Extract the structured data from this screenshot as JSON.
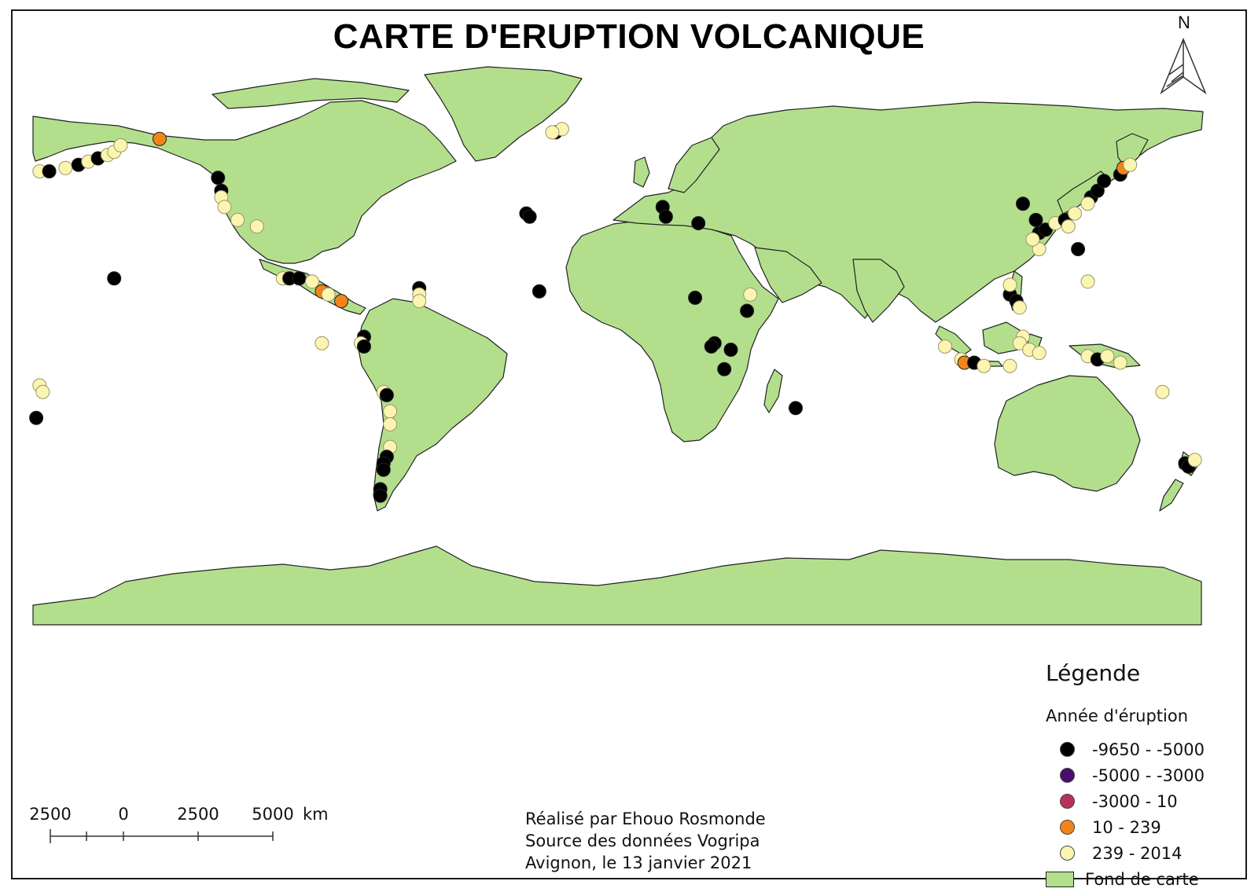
{
  "title": "CARTE D'ERUPTION VOLCANIQUE",
  "north_label": "N",
  "legend": {
    "title": "Légende",
    "subtitle": "Année d'éruption",
    "classes": [
      {
        "label": "-9650 - -5000",
        "color": "#000000"
      },
      {
        "label": "-5000 - -3000",
        "color": "#4a0d6e"
      },
      {
        "label": "-3000 - 10",
        "color": "#b8325a"
      },
      {
        "label": "10 - 239",
        "color": "#f2841a"
      },
      {
        "label": "239 - 2014",
        "color": "#fbf5b0"
      }
    ],
    "basemap": {
      "label": "Fond de carte",
      "color": "#b3df8d"
    }
  },
  "credits": {
    "author": "Réalisé par Ehouo Rosmonde",
    "source": "Source des données Vogripa",
    "place_date": "Avignon, le 13 janvier 2021"
  },
  "scale_bar": {
    "ticks": [
      "2500",
      "0",
      "2500",
      "5000"
    ],
    "unit": "km"
  },
  "map_data": {
    "projection": "equirectangular",
    "land_color": "#b3df8d",
    "eruptions": [
      {
        "lon": -178,
        "lat": 52,
        "c": 4
      },
      {
        "lon": -175,
        "lat": 52,
        "c": 0
      },
      {
        "lon": -170,
        "lat": 53,
        "c": 4
      },
      {
        "lon": -166,
        "lat": 54,
        "c": 0
      },
      {
        "lon": -163,
        "lat": 55,
        "c": 4
      },
      {
        "lon": -160,
        "lat": 56,
        "c": 0
      },
      {
        "lon": -157,
        "lat": 57,
        "c": 4
      },
      {
        "lon": -155,
        "lat": 58,
        "c": 4
      },
      {
        "lon": -153,
        "lat": 60,
        "c": 4
      },
      {
        "lon": -141,
        "lat": 62,
        "c": 3
      },
      {
        "lon": -123,
        "lat": 50,
        "c": 0
      },
      {
        "lon": -122,
        "lat": 46,
        "c": 0
      },
      {
        "lon": -122,
        "lat": 44,
        "c": 4
      },
      {
        "lon": -121,
        "lat": 41,
        "c": 4
      },
      {
        "lon": -117,
        "lat": 37,
        "c": 4
      },
      {
        "lon": -111,
        "lat": 35,
        "c": 4
      },
      {
        "lon": -155,
        "lat": 19,
        "c": 0
      },
      {
        "lon": -103,
        "lat": 19,
        "c": 4
      },
      {
        "lon": -101,
        "lat": 19,
        "c": 0
      },
      {
        "lon": -98,
        "lat": 19,
        "c": 0
      },
      {
        "lon": -94,
        "lat": 18,
        "c": 4
      },
      {
        "lon": -91,
        "lat": 15,
        "c": 3
      },
      {
        "lon": -89,
        "lat": 14,
        "c": 4
      },
      {
        "lon": -85,
        "lat": 12,
        "c": 3
      },
      {
        "lon": -61,
        "lat": 16,
        "c": 0
      },
      {
        "lon": -61,
        "lat": 14,
        "c": 4
      },
      {
        "lon": -61,
        "lat": 12,
        "c": 4
      },
      {
        "lon": -78,
        "lat": 1,
        "c": 0
      },
      {
        "lon": -79,
        "lat": -1,
        "c": 4
      },
      {
        "lon": -78,
        "lat": -2,
        "c": 0
      },
      {
        "lon": -91,
        "lat": -1,
        "c": 4
      },
      {
        "lon": -72,
        "lat": -16,
        "c": 4
      },
      {
        "lon": -71,
        "lat": -17,
        "c": 0
      },
      {
        "lon": -70,
        "lat": -22,
        "c": 4
      },
      {
        "lon": -70,
        "lat": -26,
        "c": 4
      },
      {
        "lon": -70,
        "lat": -33,
        "c": 4
      },
      {
        "lon": -71,
        "lat": -36,
        "c": 0
      },
      {
        "lon": -72,
        "lat": -38,
        "c": 0
      },
      {
        "lon": -72,
        "lat": -40,
        "c": 0
      },
      {
        "lon": -73,
        "lat": -46,
        "c": 0
      },
      {
        "lon": -73,
        "lat": -48,
        "c": 0
      },
      {
        "lon": -19,
        "lat": 64,
        "c": 0
      },
      {
        "lon": -17,
        "lat": 65,
        "c": 4
      },
      {
        "lon": -20,
        "lat": 64,
        "c": 4
      },
      {
        "lon": -28,
        "lat": 39,
        "c": 0
      },
      {
        "lon": -27,
        "lat": 38,
        "c": 0
      },
      {
        "lon": -24,
        "lat": 15,
        "c": 0
      },
      {
        "lon": 14,
        "lat": 41,
        "c": 0
      },
      {
        "lon": 15,
        "lat": 38,
        "c": 0
      },
      {
        "lon": 25,
        "lat": 36,
        "c": 0
      },
      {
        "lon": 24,
        "lat": 13,
        "c": 0
      },
      {
        "lon": 40,
        "lat": 9,
        "c": 0
      },
      {
        "lon": 41,
        "lat": 14,
        "c": 4
      },
      {
        "lon": 30,
        "lat": -1,
        "c": 0
      },
      {
        "lon": 29,
        "lat": -2,
        "c": 0
      },
      {
        "lon": 35,
        "lat": -3,
        "c": 0
      },
      {
        "lon": 33,
        "lat": -9,
        "c": 0
      },
      {
        "lon": 55,
        "lat": -21,
        "c": 0
      },
      {
        "lon": 125,
        "lat": 42,
        "c": 0
      },
      {
        "lon": 129,
        "lat": 37,
        "c": 0
      },
      {
        "lon": 130,
        "lat": 33,
        "c": 0
      },
      {
        "lon": 132,
        "lat": 34,
        "c": 0
      },
      {
        "lon": 135,
        "lat": 36,
        "c": 4
      },
      {
        "lon": 138,
        "lat": 37,
        "c": 0
      },
      {
        "lon": 139,
        "lat": 35,
        "c": 4
      },
      {
        "lon": 141,
        "lat": 39,
        "c": 4
      },
      {
        "lon": 146,
        "lat": 44,
        "c": 0
      },
      {
        "lon": 148,
        "lat": 46,
        "c": 0
      },
      {
        "lon": 150,
        "lat": 49,
        "c": 0
      },
      {
        "lon": 155,
        "lat": 51,
        "c": 0
      },
      {
        "lon": 156,
        "lat": 53,
        "c": 3
      },
      {
        "lon": 158,
        "lat": 54,
        "c": 4
      },
      {
        "lon": 145,
        "lat": 42,
        "c": 4
      },
      {
        "lon": 142,
        "lat": 28,
        "c": 0
      },
      {
        "lon": 130,
        "lat": 28,
        "c": 4
      },
      {
        "lon": 128,
        "lat": 31,
        "c": 4
      },
      {
        "lon": 145,
        "lat": 18,
        "c": 4
      },
      {
        "lon": 121,
        "lat": 14,
        "c": 0
      },
      {
        "lon": 123,
        "lat": 12,
        "c": 0
      },
      {
        "lon": 121,
        "lat": 17,
        "c": 4
      },
      {
        "lon": 124,
        "lat": 10,
        "c": 4
      },
      {
        "lon": 125,
        "lat": 1,
        "c": 4
      },
      {
        "lon": 124,
        "lat": -1,
        "c": 4
      },
      {
        "lon": 101,
        "lat": -2,
        "c": 4
      },
      {
        "lon": 106,
        "lat": -6,
        "c": 4
      },
      {
        "lon": 107,
        "lat": -7,
        "c": 3
      },
      {
        "lon": 110,
        "lat": -7,
        "c": 0
      },
      {
        "lon": 113,
        "lat": -8,
        "c": 4
      },
      {
        "lon": 121,
        "lat": -8,
        "c": 4
      },
      {
        "lon": 127,
        "lat": -3,
        "c": 4
      },
      {
        "lon": 130,
        "lat": -4,
        "c": 4
      },
      {
        "lon": 145,
        "lat": -5,
        "c": 4
      },
      {
        "lon": 148,
        "lat": -6,
        "c": 0
      },
      {
        "lon": 151,
        "lat": -5,
        "c": 4
      },
      {
        "lon": 155,
        "lat": -7,
        "c": 4
      },
      {
        "lon": 168,
        "lat": -16,
        "c": 4
      },
      {
        "lon": 175,
        "lat": -38,
        "c": 0
      },
      {
        "lon": 176,
        "lat": -39,
        "c": 0
      },
      {
        "lon": 178,
        "lat": -37,
        "c": 4
      },
      {
        "lon": -178,
        "lat": -14,
        "c": 4
      },
      {
        "lon": -177,
        "lat": -16,
        "c": 4
      },
      {
        "lon": -179,
        "lat": -24,
        "c": 0
      }
    ]
  }
}
